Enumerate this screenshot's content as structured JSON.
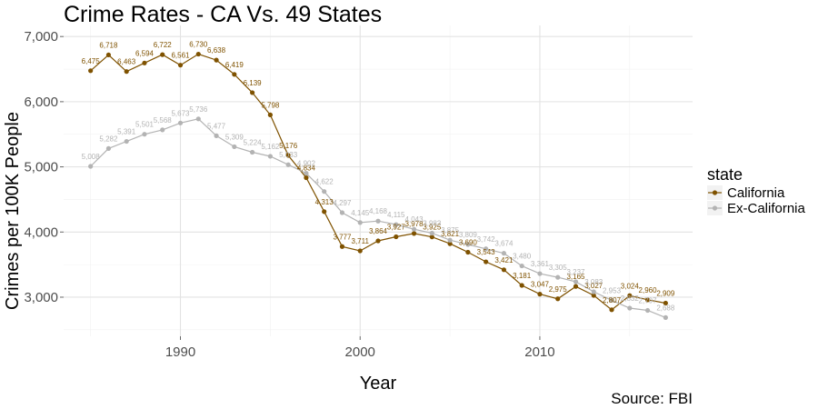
{
  "chart_data": {
    "type": "line",
    "title": "Crime Rates - CA Vs. 49 States",
    "xlabel": "Year",
    "ylabel": "Crimes per 100K People",
    "caption": "Source: FBI",
    "xlim": [
      1983.5,
      2018.5
    ],
    "ylim": [
      2400,
      7170
    ],
    "x_ticks": [
      1990,
      2000,
      2010
    ],
    "x_tick_labels": [
      "1990",
      "2000",
      "2010"
    ],
    "y_ticks": [
      3000,
      4000,
      5000,
      6000,
      7000
    ],
    "y_tick_labels": [
      "3,000",
      "4,000",
      "5,000",
      "6,000",
      "7,000"
    ],
    "grid": true,
    "legend": {
      "title": "state",
      "position": "right"
    },
    "x": [
      1985,
      1986,
      1987,
      1988,
      1989,
      1990,
      1991,
      1992,
      1993,
      1994,
      1995,
      1996,
      1997,
      1998,
      1999,
      2000,
      2001,
      2002,
      2003,
      2004,
      2005,
      2006,
      2007,
      2008,
      2009,
      2010,
      2011,
      2012,
      2013,
      2014,
      2015,
      2016,
      2017
    ],
    "series": [
      {
        "name": "California",
        "color": "#7f5200",
        "values": [
          6475,
          6718,
          6463,
          6594,
          6722,
          6561,
          6730,
          6638,
          6419,
          6139,
          5798,
          5176,
          4834,
          4313,
          3777,
          3711,
          3864,
          3927,
          3978,
          3925,
          3821,
          3690,
          3543,
          3421,
          3181,
          3047,
          2975,
          3165,
          3027,
          2807,
          3024,
          2960,
          2909
        ],
        "labels": [
          "6,475",
          "6,718",
          "6,463",
          "6,594",
          "6,722",
          "6,561",
          "6,730",
          "6,638",
          "6,419",
          "6,139",
          "5,798",
          "5,176",
          "4,834",
          "4,313",
          "3,777",
          "3,711",
          "3,864",
          "3,927",
          "3,978",
          "3,925",
          "3,821",
          "3,690",
          "3,543",
          "3,421",
          "3,181",
          "3,047",
          "2,975",
          "3,165",
          "3,027",
          "2,807",
          "3,024",
          "2,960",
          "2,909"
        ]
      },
      {
        "name": "Ex-California",
        "color": "#b3b3b3",
        "values": [
          5008,
          5282,
          5391,
          5501,
          5568,
          5673,
          5736,
          5477,
          5309,
          5224,
          5162,
          5033,
          4902,
          4622,
          4297,
          4145,
          4168,
          4115,
          4043,
          3983,
          3875,
          3809,
          3742,
          3674,
          3480,
          3361,
          3305,
          3237,
          3083,
          2953,
          2832,
          2797,
          2688
        ],
        "labels": [
          "5,008",
          "5,282",
          "5,391",
          "5,501",
          "5,568",
          "5,673",
          "5,736",
          "5,477",
          "5,309",
          "5,224",
          "5,162",
          "5,033",
          "4,902",
          "4,622",
          "4,297",
          "4,145",
          "4,168",
          "4,115",
          "4,043",
          "3,983",
          "3,875",
          "3,809",
          "3,742",
          "3,674",
          "3,480",
          "3,361",
          "3,305",
          "3,237",
          "3,083",
          "2,953",
          "2,832",
          "2,797",
          "2,688"
        ]
      }
    ]
  }
}
